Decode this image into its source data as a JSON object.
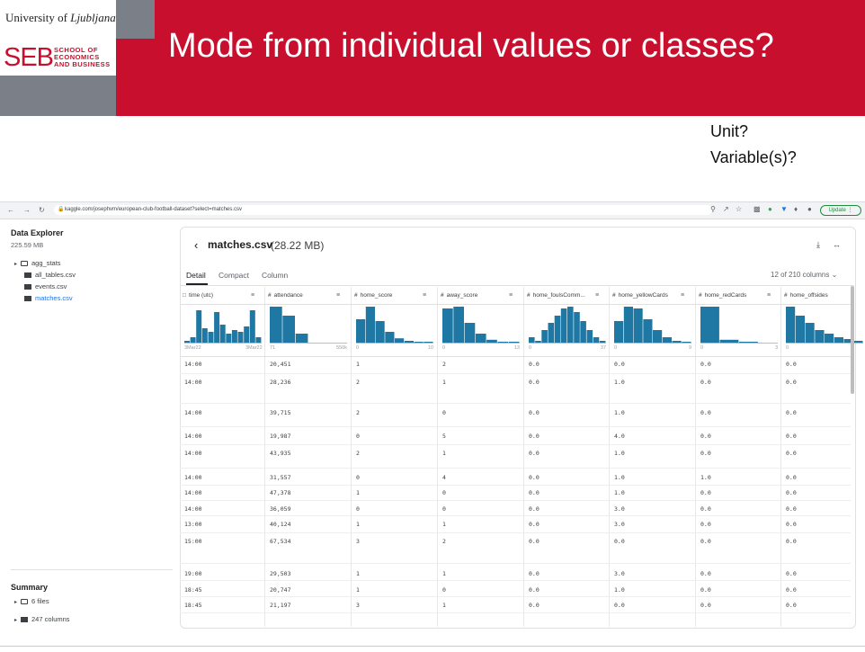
{
  "slide": {
    "university": "University of",
    "university_italic": "Ljubljana",
    "seb": "SEB",
    "school_lines": [
      "SCHOOL OF",
      "ECONOMICS",
      "AND BUSINESS"
    ],
    "title": "Mode from individual values or classes?",
    "questions": [
      "Unit?",
      "Variable(s)?"
    ]
  },
  "browser": {
    "url": "kaggle.com/josephvm/european-club-football-dataset?select=matches.csv",
    "update_label": "Update"
  },
  "sidebar": {
    "title": "Data Explorer",
    "size": "225.59 MB",
    "items": [
      {
        "label": "agg_stats",
        "type": "folder"
      },
      {
        "label": "all_tables.csv",
        "type": "table"
      },
      {
        "label": "events.csv",
        "type": "table"
      },
      {
        "label": "matches.csv",
        "type": "table",
        "active": true
      }
    ],
    "summary_title": "Summary",
    "summary_items": [
      "6 files",
      "247 columns"
    ]
  },
  "main": {
    "file_name": "matches.csv",
    "file_size": "(28.22 MB)",
    "tabs": [
      "Detail",
      "Compact",
      "Column"
    ],
    "selected_tab": "Detail",
    "column_count": "12 of 210 columns",
    "columns": [
      {
        "name": "time (utc)",
        "icon": "calendar-icon",
        "range": [
          "3Mar22",
          "3Mar22"
        ],
        "hist": [
          0.05,
          0.15,
          0.9,
          0.4,
          0.3,
          0.85,
          0.5,
          0.25,
          0.35,
          0.3,
          0.45,
          0.9,
          0.15
        ]
      },
      {
        "name": "attendance",
        "icon": "hash-icon",
        "range": [
          "71",
          "550k"
        ],
        "hist": [
          1.0,
          0.75,
          0.25,
          0.0,
          0.0,
          0.0
        ]
      },
      {
        "name": "home_score",
        "icon": "hash-icon",
        "range": [
          "0",
          "10"
        ],
        "hist": [
          0.65,
          1.0,
          0.6,
          0.3,
          0.12,
          0.05,
          0.02,
          0.01
        ]
      },
      {
        "name": "away_score",
        "icon": "hash-icon",
        "range": [
          "0",
          "13"
        ],
        "hist": [
          0.95,
          1.0,
          0.55,
          0.25,
          0.08,
          0.02,
          0.01
        ]
      },
      {
        "name": "home_foulsComm...",
        "icon": "hash-icon",
        "range": [
          "0",
          "37"
        ],
        "hist": [
          0.15,
          0.05,
          0.35,
          0.55,
          0.75,
          0.95,
          1.0,
          0.85,
          0.6,
          0.35,
          0.15,
          0.05
        ]
      },
      {
        "name": "home_yellowCards",
        "icon": "hash-icon",
        "range": [
          "0",
          "9"
        ],
        "hist": [
          0.6,
          1.0,
          0.95,
          0.65,
          0.35,
          0.15,
          0.05,
          0.01
        ]
      },
      {
        "name": "home_redCards",
        "icon": "hash-icon",
        "range": [
          "0",
          "3"
        ],
        "hist": [
          1.0,
          0.08,
          0.01,
          0.0
        ]
      },
      {
        "name": "home_offsides",
        "icon": "hash-icon",
        "range": [
          "0",
          ""
        ],
        "hist": [
          1.0,
          0.75,
          0.55,
          0.35,
          0.25,
          0.15,
          0.1,
          0.05
        ]
      }
    ],
    "rows": [
      [
        "14:00",
        "20,451",
        "1",
        "2",
        "0.0",
        "0.0",
        "0.0",
        "0.0"
      ],
      [
        "14:00",
        "28,236",
        "2",
        "1",
        "0.0",
        "1.0",
        "0.0",
        "0.0"
      ],
      [
        "14:00",
        "39,715",
        "2",
        "0",
        "0.0",
        "1.0",
        "0.0",
        "0.0"
      ],
      [
        "14:00",
        "19,987",
        "0",
        "5",
        "0.0",
        "4.0",
        "0.0",
        "0.0"
      ],
      [
        "14:00",
        "43,935",
        "2",
        "1",
        "0.0",
        "1.0",
        "0.0",
        "0.0"
      ],
      [
        "14:00",
        "31,557",
        "0",
        "4",
        "0.0",
        "1.0",
        "1.0",
        "0.0"
      ],
      [
        "14:00",
        "47,378",
        "1",
        "0",
        "0.0",
        "1.0",
        "0.0",
        "0.0"
      ],
      [
        "14:00",
        "36,059",
        "0",
        "0",
        "0.0",
        "3.0",
        "0.0",
        "0.0"
      ],
      [
        "13:00",
        "40,124",
        "1",
        "1",
        "0.0",
        "3.0",
        "0.0",
        "0.0"
      ],
      [
        "15:00",
        "67,534",
        "3",
        "2",
        "0.0",
        "0.0",
        "0.0",
        "0.0"
      ],
      [
        "19:00",
        "29,503",
        "1",
        "1",
        "0.0",
        "3.0",
        "0.0",
        "0.0"
      ],
      [
        "18:45",
        "20,747",
        "1",
        "0",
        "0.0",
        "1.0",
        "0.0",
        "0.0"
      ],
      [
        "18:45",
        "21,197",
        "3",
        "1",
        "0.0",
        "0.0",
        "0.0",
        "0.0"
      ]
    ]
  },
  "colors": {
    "brand_red": "#c8102e",
    "hist_bar": "#1f77a4",
    "link_blue": "#1a73e8"
  }
}
